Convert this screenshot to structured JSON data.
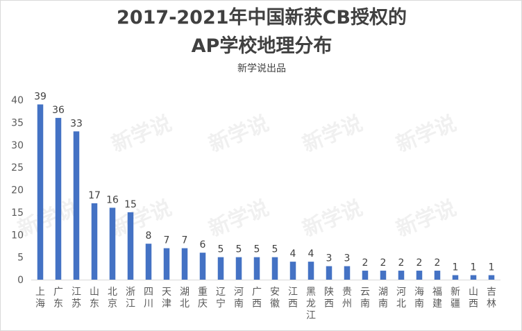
{
  "chart_data": {
    "type": "bar",
    "title": "2017-2021年中国新获CB授权的AP学校地理分布",
    "title_lines": [
      "2017-2021年中国新获CB授权的",
      "AP学校地理分布"
    ],
    "subtitle": "新学说出品",
    "watermark": "新学说",
    "xlabel": "",
    "ylabel": "",
    "ylim": [
      0,
      40
    ],
    "yticks": [
      0,
      5,
      10,
      15,
      20,
      25,
      30,
      35,
      40
    ],
    "grid": false,
    "bar_color": "#4472c4",
    "categories": [
      "上海",
      "广东",
      "江苏",
      "山东",
      "北京",
      "浙江",
      "四川",
      "天津",
      "湖北",
      "重庆",
      "辽宁",
      "河南",
      "广西",
      "安徽",
      "江西",
      "黑龙江",
      "陕西",
      "贵州",
      "云南",
      "湖南",
      "河北",
      "海南",
      "福建",
      "新疆",
      "山西",
      "吉林"
    ],
    "values": [
      39,
      36,
      33,
      17,
      16,
      15,
      8,
      7,
      7,
      6,
      5,
      5,
      5,
      5,
      4,
      4,
      3,
      3,
      2,
      2,
      2,
      2,
      2,
      1,
      1,
      1
    ]
  }
}
